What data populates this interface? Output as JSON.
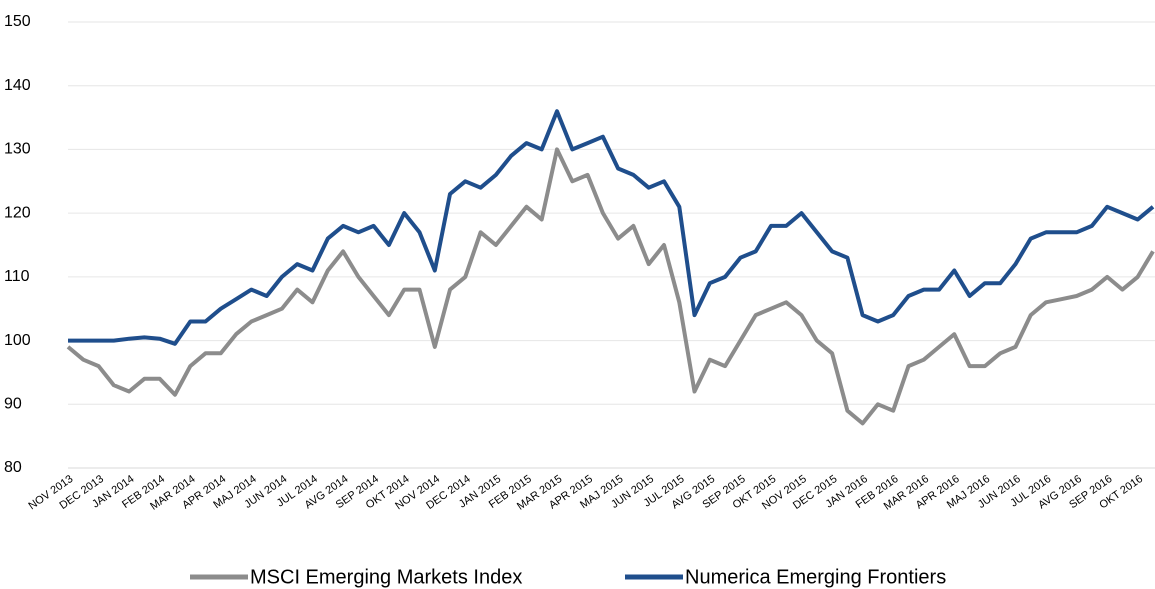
{
  "chart_data": {
    "type": "line",
    "categories": [
      "NOV 2013",
      null,
      "DEC 2013",
      null,
      "JAN 2014",
      null,
      "FEB 2014",
      null,
      "MAR 2014",
      null,
      "APR 2014",
      null,
      "MAJ 2014",
      null,
      "JUN 2014",
      null,
      "JUL 2014",
      null,
      "AVG 2014",
      null,
      "SEP 2014",
      null,
      "OKT 2014",
      null,
      "NOV 2014",
      null,
      "DEC 2014",
      null,
      "JAN 2015",
      null,
      "FEB 2015",
      null,
      "MAR 2015",
      null,
      "APR 2015",
      null,
      "MAJ 2015",
      null,
      "JUN 2015",
      null,
      "JUL 2015",
      null,
      "AVG 2015",
      null,
      "SEP 2015",
      null,
      "OKT 2015",
      null,
      "NOV 2015",
      null,
      "DEC 2015",
      null,
      "JAN 2016",
      null,
      "FEB 2016",
      null,
      "MAR 2016",
      null,
      "APR 2016",
      null,
      "MAJ 2016",
      null,
      "JUN 2016",
      null,
      "JUL 2016",
      null,
      "AVG 2016",
      null,
      "SEP 2016",
      null,
      "OKT 2016",
      null
    ],
    "series": [
      {
        "name": "MSCI Emerging Markets Index",
        "color": "#8c8c8c",
        "values": [
          99,
          97,
          96,
          93,
          92,
          94,
          94,
          91.5,
          96,
          98,
          98,
          101,
          103,
          104,
          105,
          108,
          106,
          111,
          114,
          110,
          107,
          104,
          108,
          108,
          99,
          108,
          110,
          117,
          115,
          118,
          121,
          119,
          130,
          125,
          126,
          120,
          116,
          118,
          112,
          115,
          106,
          92,
          97,
          96,
          100,
          104,
          105,
          106,
          104,
          100,
          98,
          89,
          87,
          90,
          89,
          96,
          97,
          99,
          101,
          96,
          96,
          98,
          99,
          104,
          106,
          106.5,
          107,
          108,
          110,
          108,
          110,
          114
        ]
      },
      {
        "name": "Numerica Emerging Frontiers",
        "color": "#1f4e8c",
        "values": [
          100,
          100,
          100,
          100,
          100.3,
          100.5,
          100.3,
          99.5,
          103,
          103,
          105,
          106.5,
          108,
          107,
          110,
          112,
          111,
          116,
          118,
          117,
          118,
          115,
          120,
          117,
          111,
          123,
          125,
          124,
          126,
          129,
          131,
          130,
          136,
          130,
          131,
          132,
          127,
          126,
          124,
          125,
          121,
          104,
          109,
          110,
          113,
          114,
          118,
          118,
          120,
          117,
          114,
          113,
          104,
          103,
          104,
          107,
          108,
          108,
          111,
          107,
          109,
          109,
          112,
          116,
          117,
          117,
          117,
          118,
          121,
          120,
          119,
          121
        ]
      }
    ],
    "ylim": [
      80,
      150
    ],
    "yticks": [
      80,
      90,
      100,
      110,
      120,
      130,
      140,
      150
    ],
    "grid": true
  }
}
